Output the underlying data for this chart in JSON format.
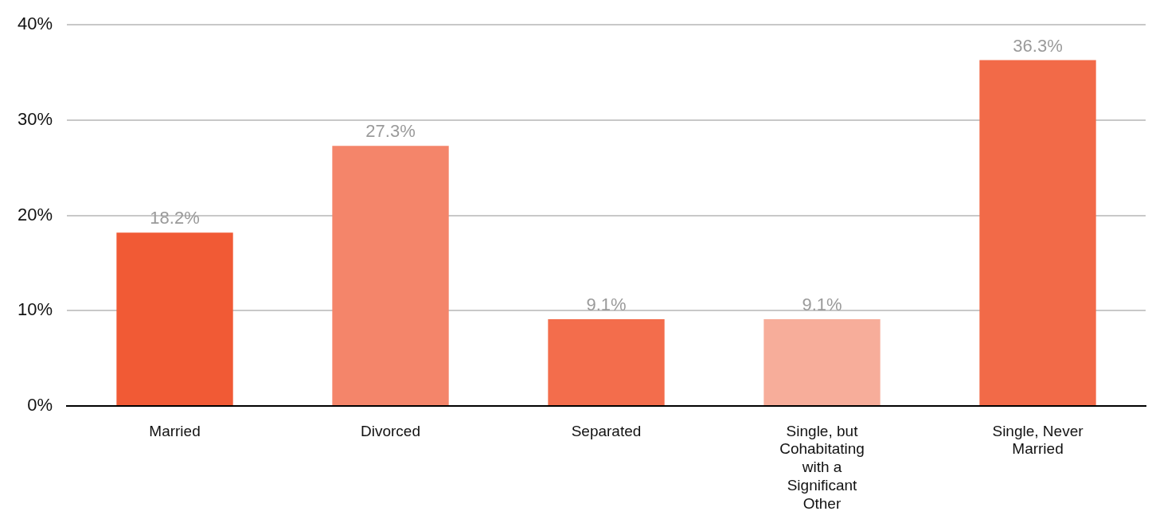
{
  "chart_data": {
    "type": "bar",
    "categories": [
      "Married",
      "Divorced",
      "Separated",
      "Single, but Cohabitating with a Significant Other",
      "Single, Never Married"
    ],
    "values": [
      18.2,
      27.3,
      9.1,
      9.1,
      36.3
    ],
    "colors": [
      "#f15a35",
      "#f4856a",
      "#f36d4c",
      "#f7ad9a",
      "#f26a48"
    ],
    "value_labels": [
      "18.2%",
      "27.3%",
      "9.1%",
      "9.1%",
      "36.3%"
    ],
    "ylim": [
      0,
      40
    ],
    "yticks": [
      {
        "value": 0,
        "label": "0%"
      },
      {
        "value": 10,
        "label": "10%"
      },
      {
        "value": 20,
        "label": "20%"
      },
      {
        "value": 30,
        "label": "30%"
      },
      {
        "value": 40,
        "label": "40%"
      }
    ],
    "grid": "y",
    "legend": false
  }
}
